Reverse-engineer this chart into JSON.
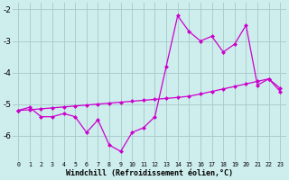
{
  "xlabel": "Windchill (Refroidissement éolien,°C)",
  "background_color": "#ceeeed",
  "grid_color": "#aacccc",
  "line_color": "#cc00cc",
  "x_values": [
    0,
    1,
    2,
    3,
    4,
    5,
    6,
    7,
    8,
    9,
    10,
    11,
    12,
    13,
    14,
    15,
    16,
    17,
    18,
    19,
    20,
    21,
    22,
    23
  ],
  "y_zigzag": [
    -5.2,
    -5.1,
    -5.4,
    -5.4,
    -5.3,
    -5.4,
    -5.9,
    -5.5,
    -6.3,
    -6.5,
    -5.9,
    -5.75,
    -5.4,
    -3.8,
    -2.2,
    -2.7,
    -3.0,
    -2.85,
    -3.35,
    -3.1,
    -2.5,
    -4.4,
    -4.2,
    -4.6
  ],
  "y_linear": [
    -5.2,
    -5.18,
    -5.15,
    -5.12,
    -5.09,
    -5.06,
    -5.03,
    -5.0,
    -4.97,
    -4.94,
    -4.91,
    -4.88,
    -4.85,
    -4.82,
    -4.79,
    -4.75,
    -4.68,
    -4.6,
    -4.52,
    -4.44,
    -4.36,
    -4.28,
    -4.2,
    -4.5
  ],
  "ylim": [
    -6.8,
    -1.8
  ],
  "yticks": [
    -6,
    -5,
    -4,
    -3,
    -2
  ],
  "xlim": [
    -0.5,
    23.5
  ],
  "xtick_labels": [
    "0",
    "1",
    "2",
    "3",
    "4",
    "5",
    "6",
    "7",
    "8",
    "9",
    "10",
    "11",
    "12",
    "13",
    "14",
    "15",
    "16",
    "17",
    "18",
    "19",
    "20",
    "21",
    "22",
    "23"
  ],
  "marker_size": 2.5,
  "linewidth": 0.9,
  "xlabel_fontsize": 6.0,
  "xtick_fontsize": 4.8,
  "ytick_fontsize": 6.5
}
